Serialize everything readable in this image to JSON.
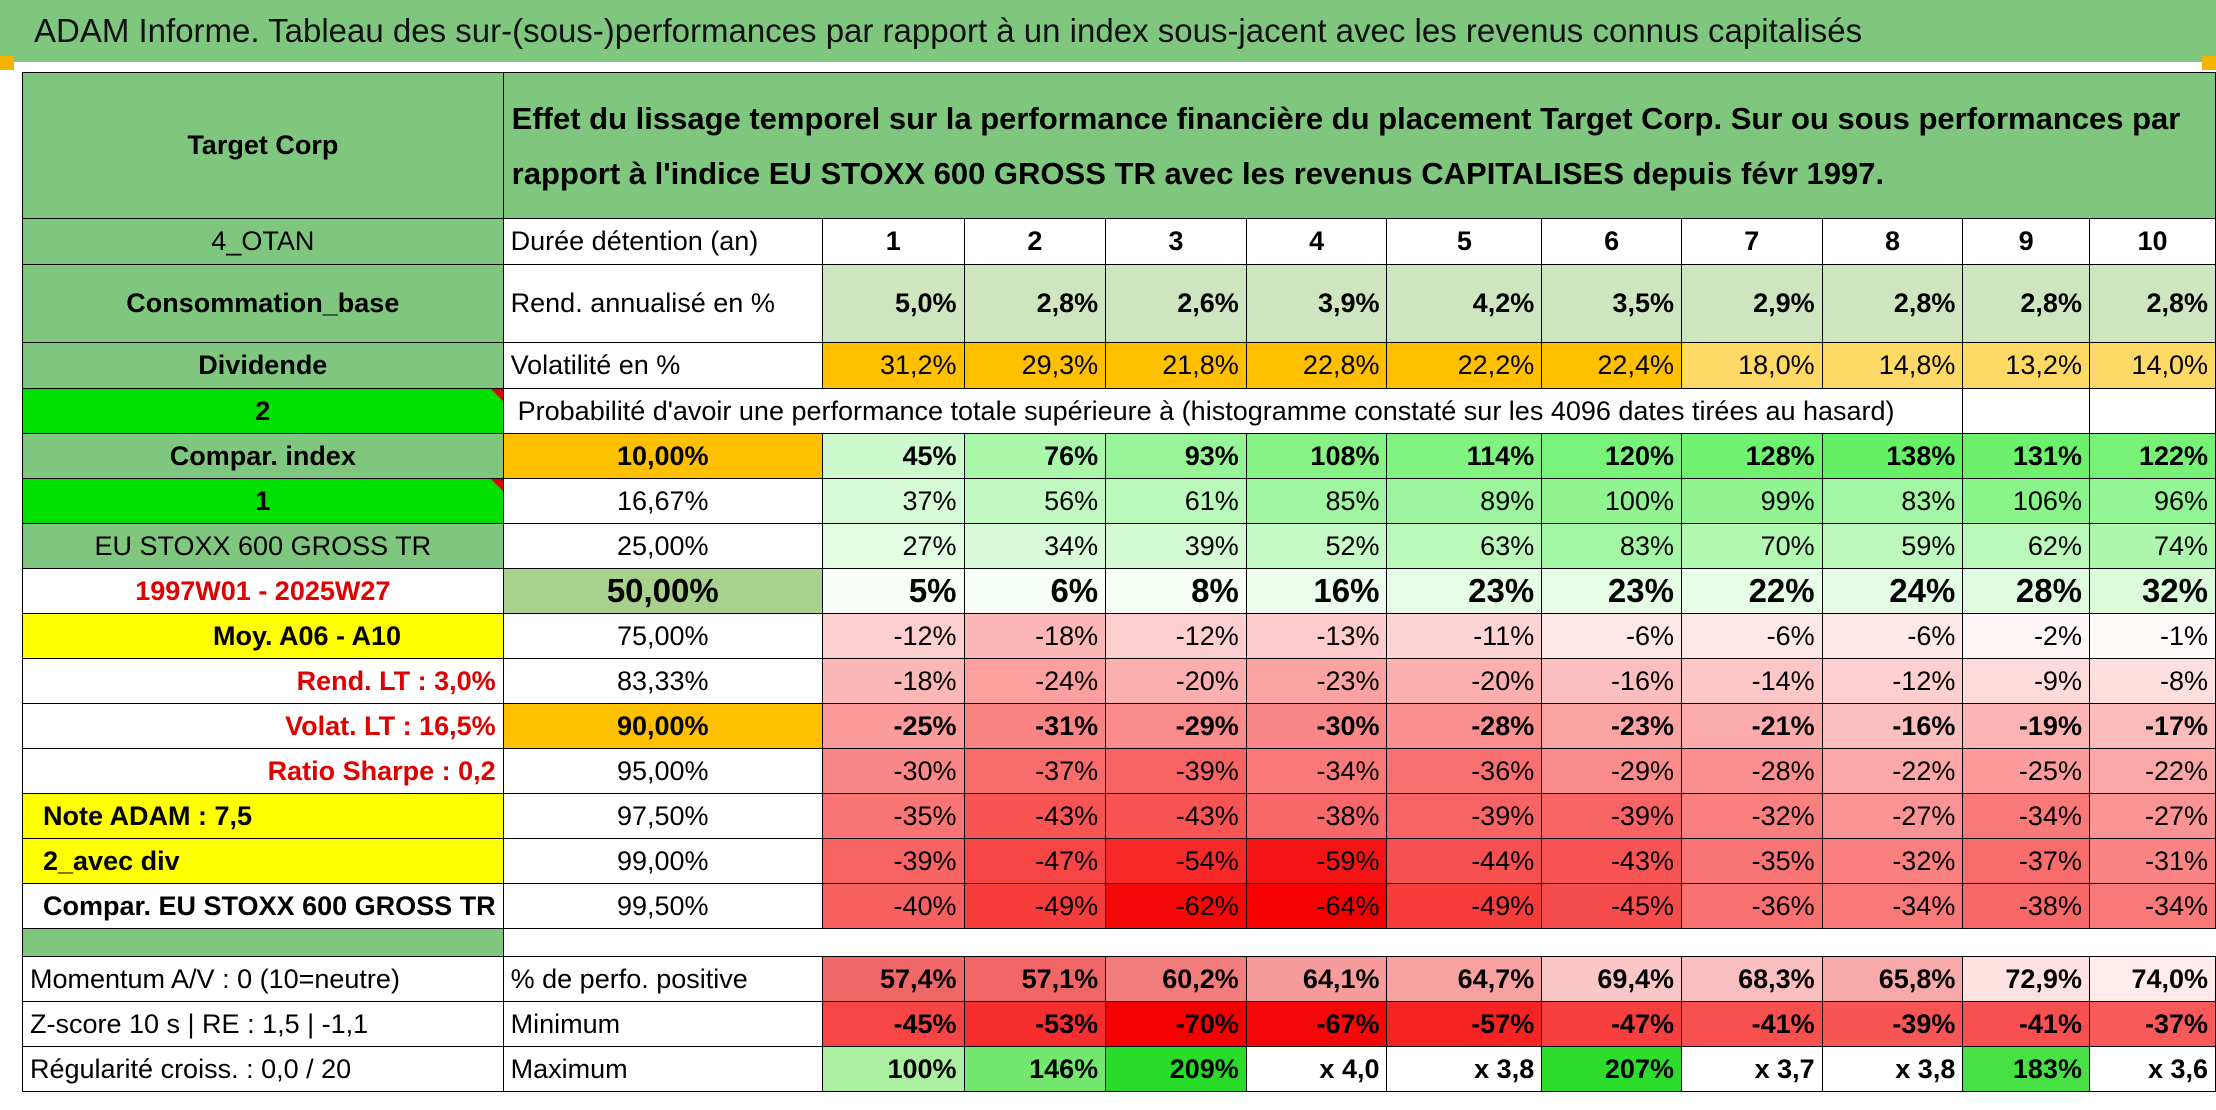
{
  "banner_title": "ADAM Informe. Tableau des sur-(sous-)performances par rapport à un index sous-jacent avec les revenus connus capitalisés",
  "colors": {
    "header_green": "#7fc77f",
    "bright_green": "#00e000",
    "yellow": "#ffff00",
    "orange": "#ffc000",
    "red_text": "#e00000"
  },
  "left": {
    "company": "Target Corp",
    "code": "4_OTAN",
    "sector": "Consommation_base",
    "dividend": "Dividende",
    "num2": "2",
    "compar_index": "Compar. index",
    "num1": "1",
    "index_name": "EU STOXX 600 GROSS TR",
    "period": "1997W01 - 2025W27",
    "moy": "Moy. A06 - A10",
    "rend_lt": "Rend. LT :   3,0%",
    "volat_lt": "Volat. LT :   16,5%",
    "sharpe": "Ratio Sharpe :   0,2",
    "note": "Note ADAM : 7,5",
    "avec_div": "2_avec div",
    "compar_full": "Compar. EU STOXX 600 GROSS TR",
    "momentum": "Momentum A/V : 0 (10=neutre)",
    "zscore": "Z-score 10 s | RE : 1,5 | -1,1",
    "regularite": "Régularité croiss. : 0,0 / 20"
  },
  "description": "Effet du lissage temporel sur la performance financière du placement Target Corp. Sur ou sous performances par rapport à l'indice EU STOXX 600 GROSS TR avec les revenus CAPITALISES depuis févr 1997.",
  "labels": {
    "duree": "Durée détention (an)",
    "rend": "Rend. annualisé en %",
    "vol": "Volatilité en %",
    "prob": "Probabilité d'avoir une performance totale supérieure à (histogramme constaté sur les 4096 dates tirées au hasard)",
    "perfo_pos": "% de perfo. positive",
    "minimum": "Minimum",
    "maximum": "Maximum"
  },
  "years": [
    "1",
    "2",
    "3",
    "4",
    "5",
    "6",
    "7",
    "8",
    "9",
    "10"
  ],
  "rend": [
    "5,0%",
    "2,8%",
    "2,6%",
    "3,9%",
    "4,2%",
    "3,5%",
    "2,9%",
    "2,8%",
    "2,8%",
    "2,8%"
  ],
  "vol": [
    "31,2%",
    "29,3%",
    "21,8%",
    "22,8%",
    "22,2%",
    "22,4%",
    "18,0%",
    "14,8%",
    "13,2%",
    "14,0%"
  ],
  "percentiles": [
    {
      "p": "10,00%",
      "v": [
        "45%",
        "76%",
        "93%",
        "108%",
        "114%",
        "120%",
        "128%",
        "138%",
        "131%",
        "122%"
      ]
    },
    {
      "p": "16,67%",
      "v": [
        "37%",
        "56%",
        "61%",
        "85%",
        "89%",
        "100%",
        "99%",
        "83%",
        "106%",
        "96%"
      ]
    },
    {
      "p": "25,00%",
      "v": [
        "27%",
        "34%",
        "39%",
        "52%",
        "63%",
        "83%",
        "70%",
        "59%",
        "62%",
        "74%"
      ]
    },
    {
      "p": "50,00%",
      "v": [
        "5%",
        "6%",
        "8%",
        "16%",
        "23%",
        "23%",
        "22%",
        "24%",
        "28%",
        "32%"
      ]
    },
    {
      "p": "75,00%",
      "v": [
        "-12%",
        "-18%",
        "-12%",
        "-13%",
        "-11%",
        "-6%",
        "-6%",
        "-6%",
        "-2%",
        "-1%"
      ]
    },
    {
      "p": "83,33%",
      "v": [
        "-18%",
        "-24%",
        "-20%",
        "-23%",
        "-20%",
        "-16%",
        "-14%",
        "-12%",
        "-9%",
        "-8%"
      ]
    },
    {
      "p": "90,00%",
      "v": [
        "-25%",
        "-31%",
        "-29%",
        "-30%",
        "-28%",
        "-23%",
        "-21%",
        "-16%",
        "-19%",
        "-17%"
      ]
    },
    {
      "p": "95,00%",
      "v": [
        "-30%",
        "-37%",
        "-39%",
        "-34%",
        "-36%",
        "-29%",
        "-28%",
        "-22%",
        "-25%",
        "-22%"
      ]
    },
    {
      "p": "97,50%",
      "v": [
        "-35%",
        "-43%",
        "-43%",
        "-38%",
        "-39%",
        "-39%",
        "-32%",
        "-27%",
        "-34%",
        "-27%"
      ]
    },
    {
      "p": "99,00%",
      "v": [
        "-39%",
        "-47%",
        "-54%",
        "-59%",
        "-44%",
        "-43%",
        "-35%",
        "-32%",
        "-37%",
        "-31%"
      ]
    },
    {
      "p": "99,50%",
      "v": [
        "-40%",
        "-49%",
        "-62%",
        "-64%",
        "-49%",
        "-45%",
        "-36%",
        "-34%",
        "-38%",
        "-34%"
      ]
    }
  ],
  "perfo_pos": [
    "57,4%",
    "57,1%",
    "60,2%",
    "64,1%",
    "64,7%",
    "69,4%",
    "68,3%",
    "65,8%",
    "72,9%",
    "74,0%"
  ],
  "minimum": [
    "-45%",
    "-53%",
    "-70%",
    "-67%",
    "-57%",
    "-47%",
    "-41%",
    "-39%",
    "-41%",
    "-37%"
  ],
  "maximum": [
    "100%",
    "146%",
    "209%",
    "x 4,0",
    "x 3,8",
    "207%",
    "x 3,7",
    "x 3,8",
    "183%",
    "x 3,6"
  ]
}
